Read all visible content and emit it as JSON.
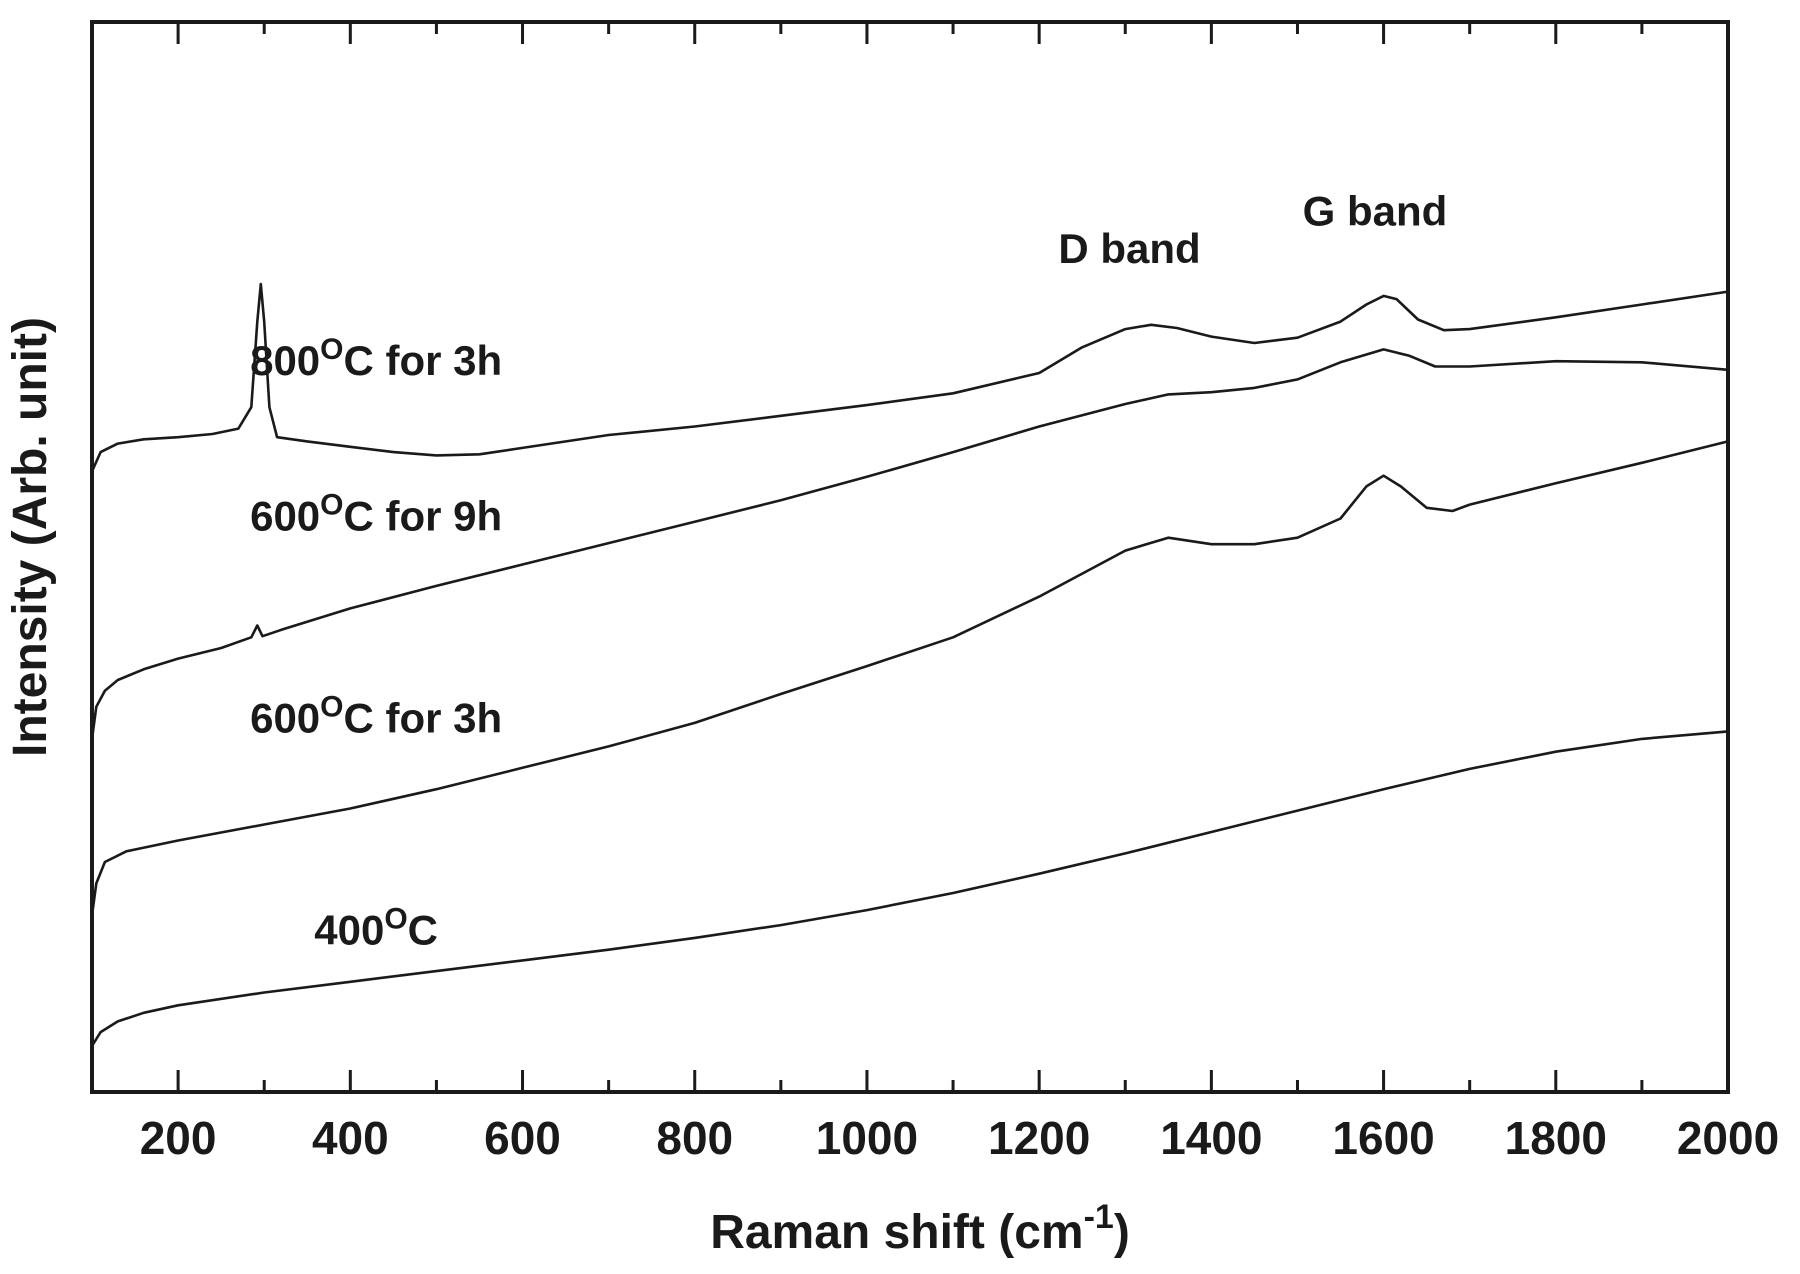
{
  "chart_data": {
    "type": "line",
    "xlabel": "Raman shift (cm",
    "xlabel_sup": "-1",
    "xlabel_end": ")",
    "ylabel": "Intensity (Arb. unit)",
    "xlim": [
      100,
      2000
    ],
    "ylim": [
      0,
      100
    ],
    "y_tick_labels": false,
    "x_ticks": [
      200,
      400,
      600,
      800,
      1000,
      1200,
      1400,
      1600,
      1800,
      2000
    ],
    "x_tick_labels": [
      "200",
      "400",
      "600",
      "800",
      "1000",
      "1200",
      "1400",
      "1600",
      "1800",
      "2000"
    ],
    "grid": false,
    "line_color": "#1a1a1a",
    "series": [
      {
        "label_pre": "800",
        "label_sup": "O",
        "label_post": "C for 3h",
        "label_at": [
          430,
          67
        ],
        "points": [
          [
            100,
            58
          ],
          [
            110,
            59.8
          ],
          [
            130,
            60.6
          ],
          [
            160,
            61.0
          ],
          [
            200,
            61.2
          ],
          [
            240,
            61.5
          ],
          [
            270,
            62
          ],
          [
            285,
            64
          ],
          [
            292,
            72
          ],
          [
            296,
            75.5
          ],
          [
            300,
            72
          ],
          [
            306,
            64
          ],
          [
            315,
            61.2
          ],
          [
            350,
            60.8
          ],
          [
            400,
            60.3
          ],
          [
            450,
            59.8
          ],
          [
            500,
            59.5
          ],
          [
            550,
            59.6
          ],
          [
            600,
            60.2
          ],
          [
            700,
            61.4
          ],
          [
            800,
            62.2
          ],
          [
            900,
            63.2
          ],
          [
            1000,
            64.2
          ],
          [
            1100,
            65.3
          ],
          [
            1200,
            67.2
          ],
          [
            1250,
            69.6
          ],
          [
            1300,
            71.3
          ],
          [
            1330,
            71.7
          ],
          [
            1360,
            71.4
          ],
          [
            1400,
            70.6
          ],
          [
            1450,
            70.0
          ],
          [
            1500,
            70.5
          ],
          [
            1550,
            72
          ],
          [
            1580,
            73.6
          ],
          [
            1600,
            74.4
          ],
          [
            1615,
            74.1
          ],
          [
            1640,
            72.2
          ],
          [
            1670,
            71.2
          ],
          [
            1700,
            71.3
          ],
          [
            1800,
            72.4
          ],
          [
            1900,
            73.6
          ],
          [
            2000,
            74.8
          ]
        ]
      },
      {
        "label_pre": "600",
        "label_sup": "O",
        "label_post": "C for 9h",
        "label_at": [
          430,
          52.5
        ],
        "points": [
          [
            100,
            33
          ],
          [
            105,
            36
          ],
          [
            115,
            37.5
          ],
          [
            130,
            38.5
          ],
          [
            160,
            39.5
          ],
          [
            200,
            40.5
          ],
          [
            250,
            41.5
          ],
          [
            285,
            42.5
          ],
          [
            292,
            43.6
          ],
          [
            298,
            42.6
          ],
          [
            320,
            43.2
          ],
          [
            400,
            45.2
          ],
          [
            500,
            47.3
          ],
          [
            600,
            49.3
          ],
          [
            700,
            51.3
          ],
          [
            800,
            53.3
          ],
          [
            900,
            55.3
          ],
          [
            1000,
            57.5
          ],
          [
            1100,
            59.8
          ],
          [
            1200,
            62.2
          ],
          [
            1300,
            64.3
          ],
          [
            1350,
            65.2
          ],
          [
            1400,
            65.4
          ],
          [
            1450,
            65.8
          ],
          [
            1500,
            66.6
          ],
          [
            1550,
            68.2
          ],
          [
            1600,
            69.4
          ],
          [
            1630,
            68.8
          ],
          [
            1660,
            67.8
          ],
          [
            1700,
            67.8
          ],
          [
            1800,
            68.3
          ],
          [
            1900,
            68.2
          ],
          [
            2000,
            67.5
          ]
        ]
      },
      {
        "label_pre": "600",
        "label_sup": "O",
        "label_post": "C for 3h",
        "label_at": [
          430,
          33.6
        ],
        "points": [
          [
            100,
            16.5
          ],
          [
            105,
            19.5
          ],
          [
            115,
            21.5
          ],
          [
            140,
            22.5
          ],
          [
            200,
            23.5
          ],
          [
            300,
            25
          ],
          [
            400,
            26.5
          ],
          [
            500,
            28.3
          ],
          [
            600,
            30.3
          ],
          [
            700,
            32.3
          ],
          [
            800,
            34.5
          ],
          [
            900,
            37.2
          ],
          [
            1000,
            39.8
          ],
          [
            1100,
            42.5
          ],
          [
            1200,
            46.3
          ],
          [
            1300,
            50.6
          ],
          [
            1350,
            51.8
          ],
          [
            1400,
            51.2
          ],
          [
            1450,
            51.2
          ],
          [
            1500,
            51.8
          ],
          [
            1550,
            53.6
          ],
          [
            1580,
            56.6
          ],
          [
            1600,
            57.6
          ],
          [
            1620,
            56.6
          ],
          [
            1650,
            54.6
          ],
          [
            1680,
            54.3
          ],
          [
            1700,
            54.9
          ],
          [
            1800,
            56.9
          ],
          [
            1900,
            58.8
          ],
          [
            2000,
            60.8
          ]
        ]
      },
      {
        "label_pre": "400",
        "label_sup": "O",
        "label_post": "C",
        "label_at": [
          430,
          13.8
        ],
        "points": [
          [
            100,
            4.3
          ],
          [
            110,
            5.6
          ],
          [
            130,
            6.6
          ],
          [
            160,
            7.4
          ],
          [
            200,
            8.1
          ],
          [
            300,
            9.3
          ],
          [
            400,
            10.3
          ],
          [
            500,
            11.3
          ],
          [
            600,
            12.3
          ],
          [
            700,
            13.3
          ],
          [
            800,
            14.4
          ],
          [
            900,
            15.6
          ],
          [
            1000,
            17.0
          ],
          [
            1100,
            18.6
          ],
          [
            1200,
            20.4
          ],
          [
            1300,
            22.3
          ],
          [
            1400,
            24.3
          ],
          [
            1500,
            26.3
          ],
          [
            1600,
            28.3
          ],
          [
            1700,
            30.2
          ],
          [
            1800,
            31.8
          ],
          [
            1900,
            33
          ],
          [
            2000,
            33.7
          ]
        ]
      }
    ],
    "annotations": [
      {
        "text": "D band",
        "at": [
          1305,
          77.5
        ]
      },
      {
        "text": "G band",
        "at": [
          1590,
          81
        ]
      }
    ]
  }
}
